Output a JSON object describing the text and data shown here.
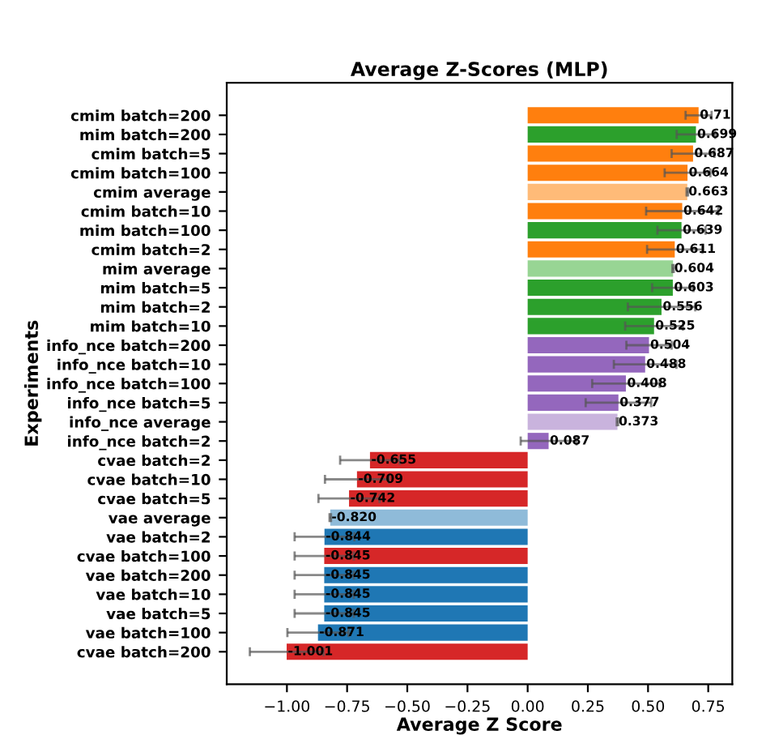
{
  "chart_data": {
    "type": "bar",
    "orientation": "horizontal",
    "title": "Average Z-Scores (MLP)",
    "xlabel": "Average Z Score",
    "ylabel": "Experiments",
    "categories": [
      "cmim batch=200",
      "mim batch=200",
      "cmim batch=5",
      "cmim batch=100",
      "cmim average",
      "cmim batch=10",
      "mim batch=100",
      "cmim batch=2",
      "mim average",
      "mim batch=5",
      "mim batch=2",
      "mim batch=10",
      "info_nce batch=200",
      "info_nce batch=10",
      "info_nce batch=100",
      "info_nce batch=5",
      "info_nce average",
      "info_nce batch=2",
      "cvae batch=2",
      "cvae batch=10",
      "cvae batch=5",
      "vae average",
      "vae batch=2",
      "cvae batch=100",
      "vae batch=200",
      "vae batch=10",
      "vae batch=5",
      "vae batch=100",
      "cvae batch=200"
    ],
    "values": [
      0.71,
      0.699,
      0.687,
      0.664,
      0.663,
      0.642,
      0.639,
      0.611,
      0.604,
      0.603,
      0.556,
      0.525,
      0.504,
      0.488,
      0.408,
      0.377,
      0.373,
      0.087,
      -0.655,
      -0.709,
      -0.742,
      -0.82,
      -0.844,
      -0.845,
      -0.845,
      -0.845,
      -0.845,
      -0.871,
      -1.001
    ],
    "value_labels": [
      "0.71",
      "0.699",
      "0.687",
      "0.664",
      "0.663",
      "0.642",
      "0.639",
      "0.611",
      "0.604",
      "0.603",
      "0.556",
      "0.525",
      "0.504",
      "0.488",
      "0.408",
      "0.377",
      "0.373",
      "0.087",
      "-0.655",
      "-0.709",
      "-0.742",
      "-0.820",
      "-0.844",
      "-0.845",
      "-0.845",
      "-0.845",
      "-0.845",
      "-0.871",
      "-1.001"
    ],
    "errors": [
      0.054,
      0.08,
      0.089,
      0.095,
      0.003,
      0.15,
      0.1,
      0.115,
      0.003,
      0.086,
      0.14,
      0.12,
      0.094,
      0.13,
      0.14,
      0.136,
      0.003,
      0.116,
      0.124,
      0.133,
      0.127,
      0.003,
      0.124,
      0.123,
      0.123,
      0.123,
      0.123,
      0.127,
      0.153
    ],
    "colors": [
      "#ff7f0e",
      "#2ca02c",
      "#ff7f0e",
      "#ff7f0e",
      "#ffbb78",
      "#ff7f0e",
      "#2ca02c",
      "#ff7f0e",
      "#98d594",
      "#2ca02c",
      "#2ca02c",
      "#2ca02c",
      "#9467bd",
      "#9467bd",
      "#9467bd",
      "#9467bd",
      "#c9b3dd",
      "#9467bd",
      "#d62728",
      "#d62728",
      "#d62728",
      "#8fbbd9",
      "#1f77b4",
      "#d62728",
      "#1f77b4",
      "#1f77b4",
      "#1f77b4",
      "#1f77b4",
      "#d62728"
    ],
    "xlim": [
      -1.25,
      0.85
    ],
    "xticks": [
      {
        "value": -1.0,
        "label": "−1.00"
      },
      {
        "value": -0.75,
        "label": "−0.75"
      },
      {
        "value": -0.5,
        "label": "−0.50"
      },
      {
        "value": -0.25,
        "label": "−0.25"
      },
      {
        "value": 0.0,
        "label": "0.00"
      },
      {
        "value": 0.25,
        "label": "0.25"
      },
      {
        "value": 0.5,
        "label": "0.50"
      },
      {
        "value": 0.75,
        "label": "0.75"
      }
    ],
    "grid": false
  }
}
